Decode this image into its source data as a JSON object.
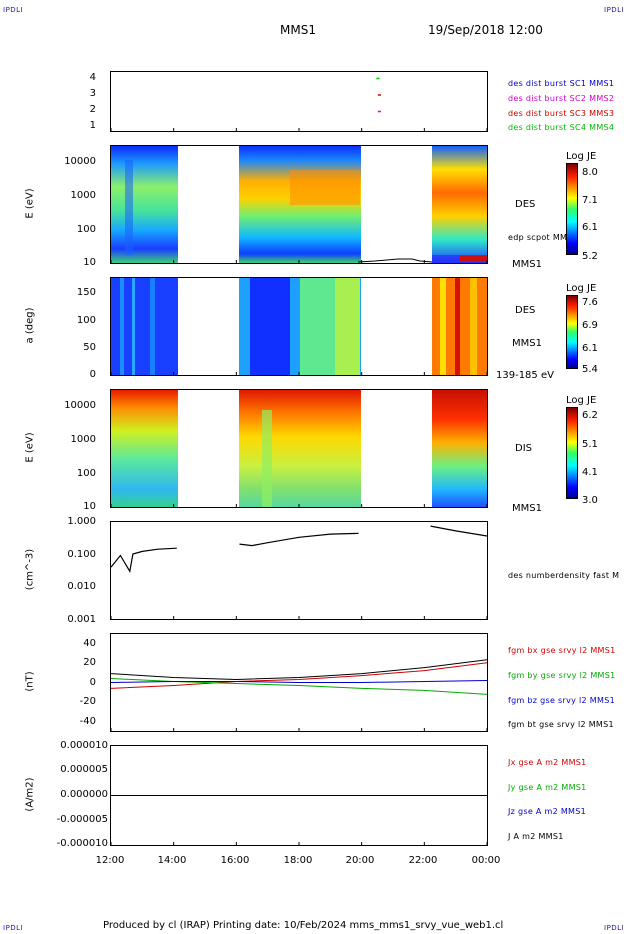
{
  "corner_tl": "IPDLI",
  "corner_tr": "IPDLI",
  "corner_bl": "IPDLI",
  "corner_br": "IPDLI",
  "spacecraft": "MMS1",
  "datetime": "19/Sep/2018 12:00",
  "footer": "Produced by cl (IRAP)   Printing date: 10/Feb/2024   mms_mms1_srvy_vue_web1.cl",
  "x_ticks": [
    "12:00",
    "14:00",
    "16:00",
    "18:00",
    "20:00",
    "22:00",
    "00:00"
  ],
  "panels": {
    "burst": {
      "y_ticks": [
        "4",
        "3",
        "2",
        "1"
      ],
      "legend": [
        {
          "text": "des dist burst SC1 MMS1",
          "color": "#0000cc"
        },
        {
          "text": "des dist burst SC2 MMS2",
          "color": "#cc00cc"
        },
        {
          "text": "des dist burst SC3 MMS3",
          "color": "#cc0000"
        },
        {
          "text": "des dist burst SC4 MMS4",
          "color": "#00bb00"
        }
      ]
    },
    "des_energy": {
      "ylabel": "E (eV)",
      "y_ticks": [
        "10000",
        "1000",
        "100",
        "10"
      ],
      "label": "DES",
      "sub_label": "edp scpot MMS1",
      "sc_label": "MMS1",
      "cbar_title": "Log JE",
      "cbar_ticks": [
        "8.0",
        "7.1",
        "6.1",
        "5.2"
      ]
    },
    "des_pitch": {
      "ylabel": "a (deg)",
      "y_ticks": [
        "150",
        "100",
        "50",
        "0"
      ],
      "label": "DES",
      "sc_label": "MMS1",
      "energy_range": "139-185 eV",
      "cbar_title": "Log JE",
      "cbar_ticks": [
        "7.6",
        "6.9",
        "6.1",
        "5.4"
      ]
    },
    "dis_energy": {
      "ylabel": "E (eV)",
      "y_ticks": [
        "10000",
        "1000",
        "100",
        "10"
      ],
      "label": "DIS",
      "sc_label": "MMS1",
      "cbar_title": "Log JE",
      "cbar_ticks": [
        "6.2",
        "5.1",
        "4.1",
        "3.0"
      ]
    },
    "density": {
      "ylabel": "(cm^-3)",
      "y_ticks": [
        "1.000",
        "0.100",
        "0.010",
        "0.001"
      ],
      "legend": [
        {
          "text": "des numberdensity fast M",
          "color": "#000000"
        }
      ]
    },
    "bfield": {
      "ylabel": "(nT)",
      "y_ticks": [
        "40",
        "20",
        "0",
        "-20",
        "-40"
      ],
      "legend": [
        {
          "text": "fgm bx gse srvy l2 MMS1",
          "color": "#cc0000"
        },
        {
          "text": "fgm by gse srvy l2 MMS1",
          "color": "#00aa00"
        },
        {
          "text": "fgm bz gse srvy l2 MMS1",
          "color": "#0000cc"
        },
        {
          "text": "fgm bt gse srvy l2 MMS1",
          "color": "#000000"
        }
      ]
    },
    "current": {
      "ylabel": "(A/m2)",
      "y_ticks": [
        "0.000010",
        "0.000005",
        "0.000000",
        "-0.000005",
        "-0.000010"
      ],
      "legend": [
        {
          "text": "Jx gse A m2 MMS1",
          "color": "#cc0000"
        },
        {
          "text": "Jy gse A m2 MMS1",
          "color": "#00aa00"
        },
        {
          "text": "Jz gse A m2 MMS1",
          "color": "#0000cc"
        },
        {
          "text": "J A m2 MMS1",
          "color": "#000000"
        }
      ]
    }
  },
  "chart_data": {
    "type": "line",
    "x_range": [
      "12:00",
      "00:00"
    ],
    "gaps": [
      [
        "14:10",
        "16:05"
      ],
      [
        "20:00",
        "22:15"
      ]
    ],
    "density_series": {
      "name": "des numberdensity fast M",
      "x_hours": [
        12.0,
        12.3,
        12.6,
        12.7,
        13.0,
        13.5,
        14.1,
        16.1,
        16.5,
        17.0,
        18.0,
        19.0,
        19.9,
        22.2,
        23.0,
        24.0
      ],
      "values": [
        0.04,
        0.09,
        0.03,
        0.1,
        0.12,
        0.14,
        0.15,
        0.2,
        0.18,
        0.22,
        0.32,
        0.4,
        0.42,
        0.7,
        0.5,
        0.35
      ],
      "ylim": [
        0.001,
        1.0
      ],
      "scale": "log"
    },
    "b_series": [
      {
        "name": "fgm bx gse srvy l2 MMS1",
        "x_hours": [
          12,
          14,
          16,
          18,
          20,
          22,
          24
        ],
        "values": [
          -6,
          -3,
          1,
          3,
          7,
          12,
          20
        ]
      },
      {
        "name": "fgm by gse srvy l2 MMS1",
        "x_hours": [
          12,
          14,
          16,
          18,
          20,
          22,
          24
        ],
        "values": [
          4,
          1,
          -1,
          -3,
          -6,
          -8,
          -12
        ]
      },
      {
        "name": "fgm bz gse srvy l2 MMS1",
        "x_hours": [
          12,
          14,
          16,
          18,
          20,
          22,
          24
        ],
        "values": [
          0,
          1,
          1,
          0,
          0,
          1,
          2
        ]
      },
      {
        "name": "fgm bt gse srvy l2 MMS1",
        "x_hours": [
          12,
          14,
          16,
          18,
          20,
          22,
          24
        ],
        "values": [
          9,
          5,
          3,
          5,
          9,
          15,
          23
        ]
      }
    ],
    "b_ylim": [
      -50,
      50
    ],
    "j_ylim": [
      -1e-05,
      1e-05
    ],
    "burst_marks": [
      {
        "x_hours": 20.5,
        "sc": 4,
        "color": "#00bb00"
      },
      {
        "x_hours": 20.55,
        "sc": 3,
        "color": "#cc0000"
      },
      {
        "x_hours": 20.55,
        "sc": 2,
        "color": "#cc00cc"
      }
    ]
  }
}
